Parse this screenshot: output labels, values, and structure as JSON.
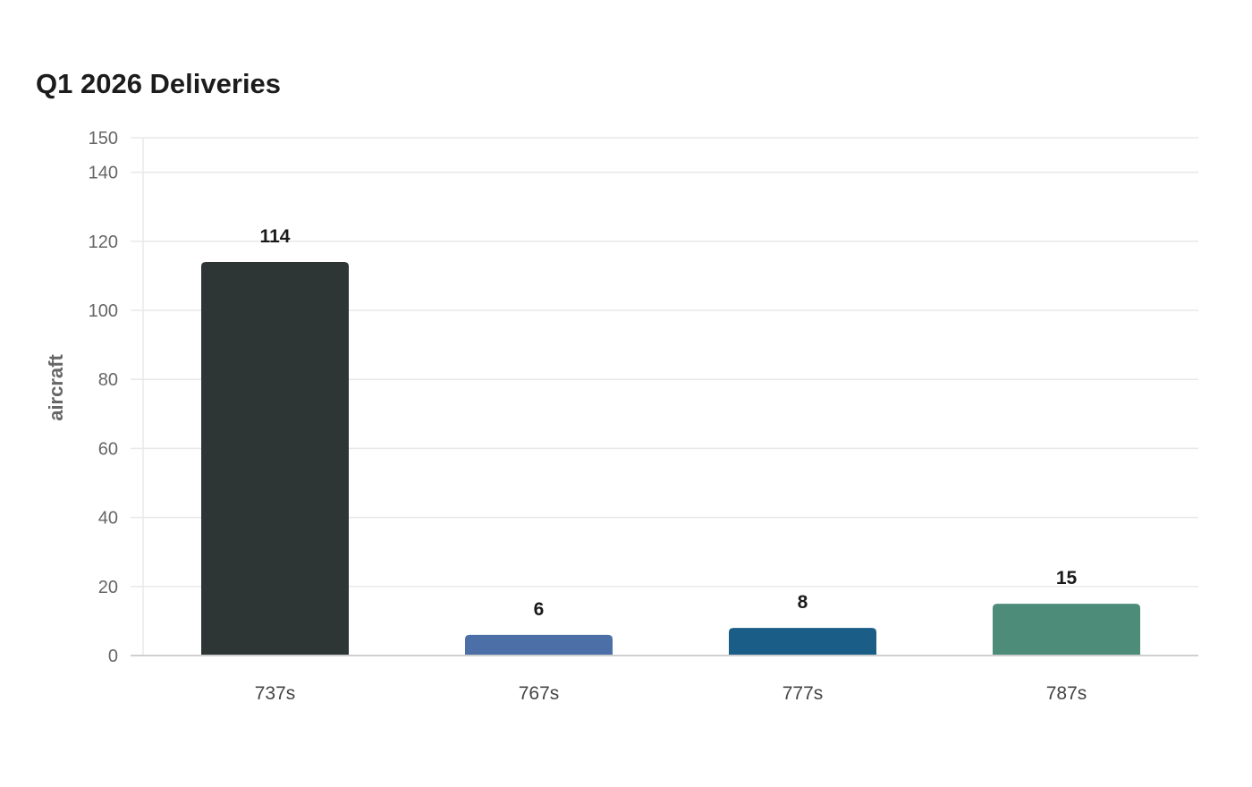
{
  "chart_data": {
    "type": "bar",
    "title": "Q1 2026 Deliveries",
    "xlabel": "",
    "ylabel": "aircraft",
    "categories": [
      "737s",
      "767s",
      "777s",
      "787s"
    ],
    "values": [
      114,
      6,
      8,
      15
    ],
    "data_labels": [
      "114",
      "6",
      "8",
      "15"
    ],
    "colors": [
      "#2e3535",
      "#4b6fa6",
      "#1a5e88",
      "#4e8c7a"
    ],
    "ylim": [
      0,
      150
    ],
    "yticks": [
      0,
      20,
      40,
      60,
      80,
      100,
      120,
      140,
      150
    ],
    "grid": true,
    "legend": "none"
  }
}
